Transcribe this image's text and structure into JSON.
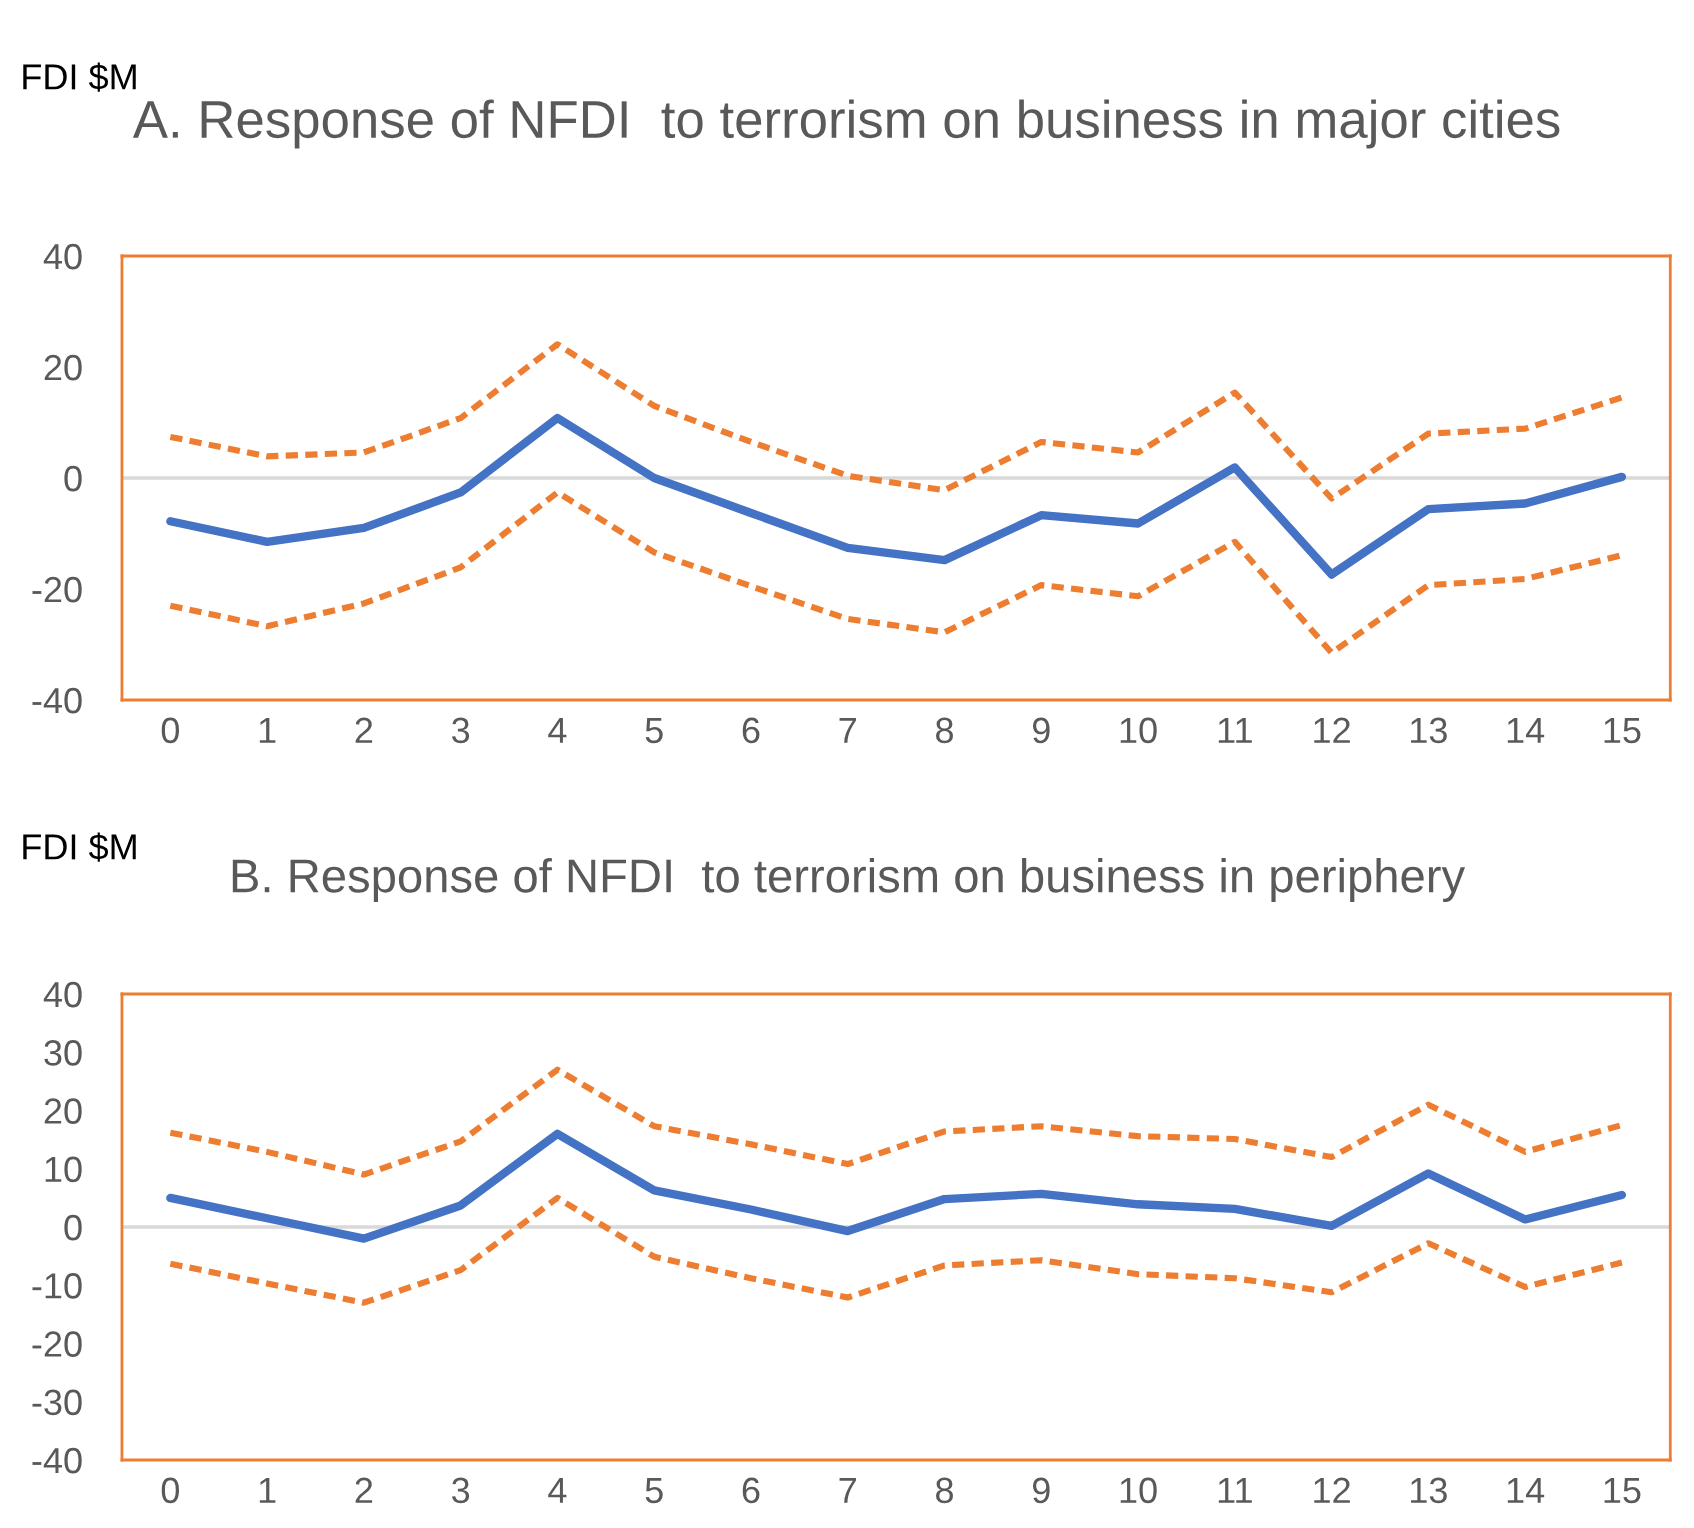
{
  "chart_data": [
    {
      "type": "line",
      "title": "A. Response of NFDI  to terrorism on business in major cities",
      "ylabel": "FDI $M",
      "categories": [
        "0",
        "1",
        "2",
        "3",
        "4",
        "5",
        "6",
        "7",
        "8",
        "9",
        "10",
        "11",
        "12",
        "13",
        "14",
        "15"
      ],
      "ylim": [
        -40,
        40
      ],
      "yticks": [
        -40,
        -20,
        0,
        20,
        40
      ],
      "grid": false,
      "legend": false,
      "ref_lines": [
        {
          "axis": "y",
          "value": 0,
          "color": "#d9d9d9"
        }
      ],
      "series": [
        {
          "color": "#4472c4",
          "line_style": "solid",
          "values": [
            -7.8,
            -11.5,
            -9,
            -2.6,
            10.8,
            0,
            -6.3,
            -12.6,
            -14.8,
            -6.7,
            -8.2,
            1.9,
            -17.4,
            -5.6,
            -4.6,
            0.2
          ]
        },
        {
          "color": "#ed7d31",
          "line_style": "dashed",
          "values": [
            7.4,
            3.9,
            4.6,
            10.8,
            24.1,
            13,
            6.5,
            0.4,
            -2.2,
            6.5,
            4.6,
            15.4,
            -3.7,
            8,
            8.9,
            14.5
          ]
        },
        {
          "color": "#ed7d31",
          "line_style": "dashed",
          "values": [
            -23,
            -26.7,
            -22.6,
            -16.1,
            -2.6,
            -13.4,
            -19.5,
            -25.4,
            -27.8,
            -19.3,
            -21.3,
            -11.5,
            -31.5,
            -19.3,
            -18.2,
            -13.9
          ]
        }
      ]
    },
    {
      "type": "line",
      "title": "B. Response of NFDI  to terrorism on business in periphery",
      "ylabel": "FDI $M",
      "categories": [
        "0",
        "1",
        "2",
        "3",
        "4",
        "5",
        "6",
        "7",
        "8",
        "9",
        "10",
        "11",
        "12",
        "13",
        "14",
        "15"
      ],
      "ylim": [
        -40,
        40
      ],
      "yticks": [
        -40,
        -30,
        -20,
        -10,
        0,
        10,
        20,
        30,
        40
      ],
      "grid": false,
      "legend": false,
      "ref_lines": [
        {
          "axis": "y",
          "value": 0,
          "color": "#d9d9d9"
        }
      ],
      "series": [
        {
          "color": "#4472c4",
          "line_style": "solid",
          "values": [
            5,
            1.5,
            -2,
            3.7,
            16,
            6.3,
            3,
            -0.7,
            4.8,
            5.7,
            3.9,
            3.1,
            0.2,
            9.2,
            1.3,
            5.5
          ]
        },
        {
          "color": "#ed7d31",
          "line_style": "dashed",
          "values": [
            16.2,
            12.9,
            9,
            14.7,
            27,
            17.3,
            14.2,
            10.8,
            16.4,
            17.3,
            15.6,
            15.1,
            12,
            21,
            12.9,
            17.5
          ]
        },
        {
          "color": "#ed7d31",
          "line_style": "dashed",
          "values": [
            -6.3,
            -9.7,
            -13,
            -7.4,
            5,
            -5.1,
            -8.8,
            -12.1,
            -6.6,
            -5.7,
            -8.1,
            -8.8,
            -11.2,
            -2.8,
            -10.3,
            -6.1
          ]
        }
      ]
    }
  ]
}
